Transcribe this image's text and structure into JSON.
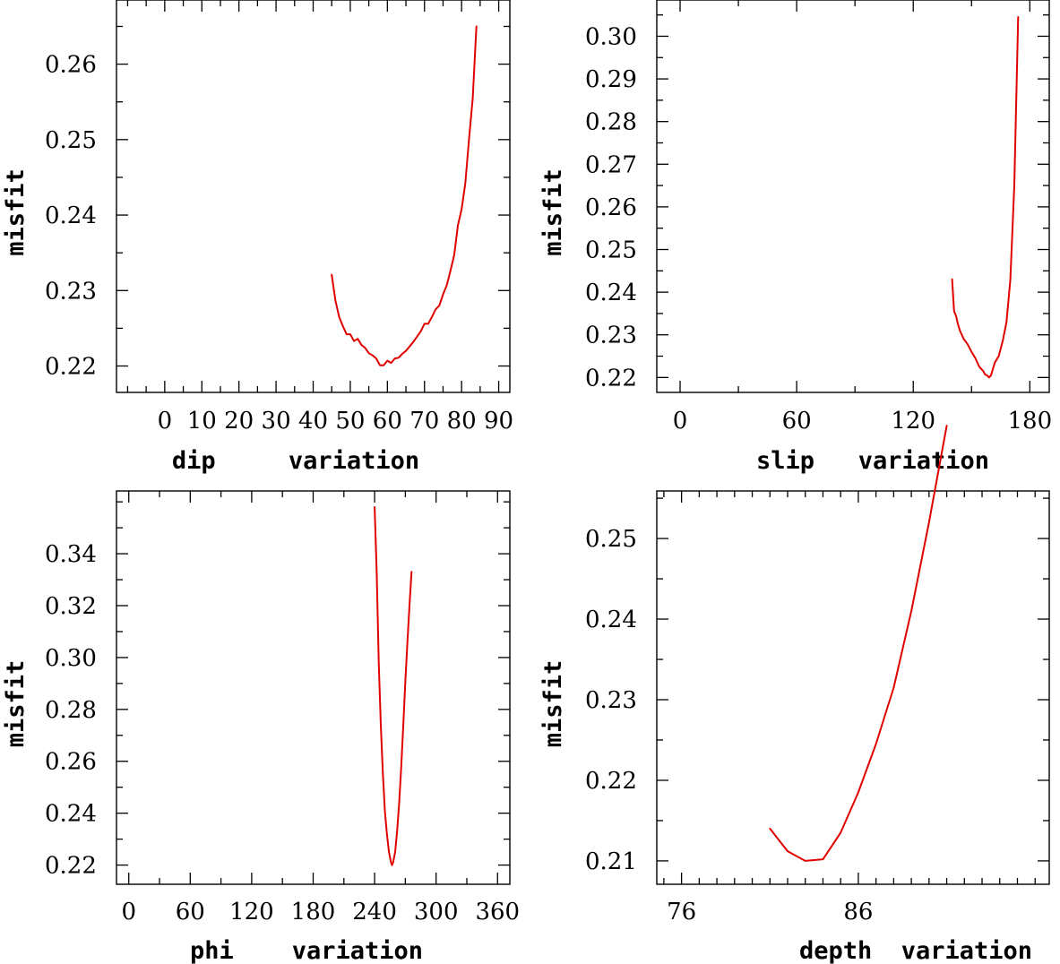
{
  "style": {
    "curve_color": "#e00000",
    "axis_color": "#000000"
  },
  "chart_data": [
    {
      "id": "dip",
      "type": "line",
      "title": "",
      "xlabel": "dip     variation",
      "ylabel": "misfit",
      "xlim": [
        -13,
        93
      ],
      "ylim": [
        0.2165,
        0.2685
      ],
      "xticks": [
        0,
        10,
        20,
        30,
        40,
        50,
        60,
        70,
        80,
        90
      ],
      "xtick_labels": [
        "0",
        "10",
        "20",
        "30",
        "40",
        "50",
        "60",
        "70",
        "80",
        "90"
      ],
      "x_minor_step": 5,
      "yticks": [
        0.22,
        0.23,
        0.24,
        0.25,
        0.26
      ],
      "ytick_labels": [
        "0.22",
        "0.23",
        "0.24",
        "0.25",
        "0.26"
      ],
      "y_minor_step": 0.005,
      "grid": false,
      "x": [
        45,
        46,
        47,
        48,
        49,
        50,
        51,
        52,
        53,
        54,
        55,
        56,
        57,
        58,
        59,
        60,
        61,
        62,
        63,
        64,
        65,
        66,
        67,
        68,
        69,
        70,
        71,
        72,
        73,
        74,
        75,
        76,
        77,
        78,
        79,
        80,
        81,
        82,
        83,
        84
      ],
      "y": [
        0.2321,
        0.2287,
        0.2265,
        0.2253,
        0.2242,
        0.2242,
        0.2233,
        0.2236,
        0.2228,
        0.2224,
        0.2217,
        0.2214,
        0.221,
        0.2201,
        0.2201,
        0.2207,
        0.2204,
        0.221,
        0.2211,
        0.2216,
        0.222,
        0.2226,
        0.2232,
        0.2239,
        0.2246,
        0.2256,
        0.2256,
        0.2265,
        0.2275,
        0.228,
        0.2295,
        0.2307,
        0.2326,
        0.2347,
        0.2386,
        0.2408,
        0.2442,
        0.25,
        0.2555,
        0.265
      ]
    },
    {
      "id": "slip",
      "type": "line",
      "title": "",
      "xlabel": "slip   variation",
      "ylabel": "misfit",
      "xlim": [
        -12,
        190
      ],
      "ylim": [
        0.2165,
        0.3085
      ],
      "xticks": [
        0,
        60,
        120,
        180
      ],
      "xtick_labels": [
        "0",
        "60",
        "120",
        "180"
      ],
      "x_minor_step": 30,
      "yticks": [
        0.22,
        0.23,
        0.24,
        0.25,
        0.26,
        0.27,
        0.28,
        0.29,
        0.3
      ],
      "ytick_labels": [
        "0.22",
        "0.23",
        "0.24",
        "0.25",
        "0.26",
        "0.27",
        "0.28",
        "0.29",
        "0.30"
      ],
      "y_minor_step": 0.005,
      "grid": false,
      "x": [
        140,
        141,
        142,
        143,
        144,
        146,
        148,
        150,
        152,
        154,
        156,
        157,
        158,
        159,
        160,
        162,
        164,
        166,
        168,
        170,
        172,
        174
      ],
      "y": [
        0.243,
        0.2355,
        0.2345,
        0.2325,
        0.231,
        0.229,
        0.2278,
        0.226,
        0.2245,
        0.2225,
        0.2215,
        0.2207,
        0.2205,
        0.22,
        0.2205,
        0.2235,
        0.225,
        0.2285,
        0.233,
        0.243,
        0.265,
        0.3045
      ]
    },
    {
      "id": "phi",
      "type": "line",
      "title": "",
      "xlabel": "phi    variation",
      "ylabel": "misfit",
      "xlim": [
        -12,
        372
      ],
      "ylim": [
        0.2126,
        0.3642
      ],
      "xticks": [
        0,
        60,
        120,
        180,
        240,
        300,
        360
      ],
      "xtick_labels": [
        "0",
        "60",
        "120",
        "180",
        "240",
        "300",
        "360"
      ],
      "x_minor_step": 30,
      "yticks": [
        0.22,
        0.24,
        0.26,
        0.28,
        0.3,
        0.32,
        0.34
      ],
      "ytick_labels": [
        "0.22",
        "0.24",
        "0.26",
        "0.28",
        "0.30",
        "0.32",
        "0.34"
      ],
      "y_minor_step": 0.01,
      "grid": false,
      "x": [
        240,
        242,
        244,
        246,
        248,
        250,
        252,
        254,
        256,
        257,
        258,
        260,
        262,
        264,
        266,
        268,
        270,
        272,
        274,
        276
      ],
      "y": [
        0.358,
        0.333,
        0.298,
        0.274,
        0.256,
        0.241,
        0.232,
        0.225,
        0.221,
        0.22,
        0.221,
        0.225,
        0.233,
        0.244,
        0.258,
        0.274,
        0.291,
        0.306,
        0.32,
        0.333
      ]
    },
    {
      "id": "depth",
      "type": "line",
      "title": "",
      "xlabel": "depth  variation",
      "ylabel": "misfit",
      "xlim": [
        74.6,
        96.8
      ],
      "ylim": [
        0.2071,
        0.2559
      ],
      "xticks": [
        76,
        86
      ],
      "xtick_labels": [
        "76",
        "86"
      ],
      "x_minor_step": 1,
      "yticks": [
        0.21,
        0.22,
        0.23,
        0.24,
        0.25
      ],
      "ytick_labels": [
        "0.21",
        "0.22",
        "0.23",
        "0.24",
        "0.25"
      ],
      "y_minor_step": 0.005,
      "grid": false,
      "x": [
        81,
        82,
        83,
        84,
        85,
        86,
        87,
        88,
        89,
        90,
        91
      ],
      "y": [
        0.214,
        0.2112,
        0.21,
        0.2102,
        0.2135,
        0.2185,
        0.2245,
        0.2315,
        0.241,
        0.252,
        0.264
      ]
    }
  ]
}
